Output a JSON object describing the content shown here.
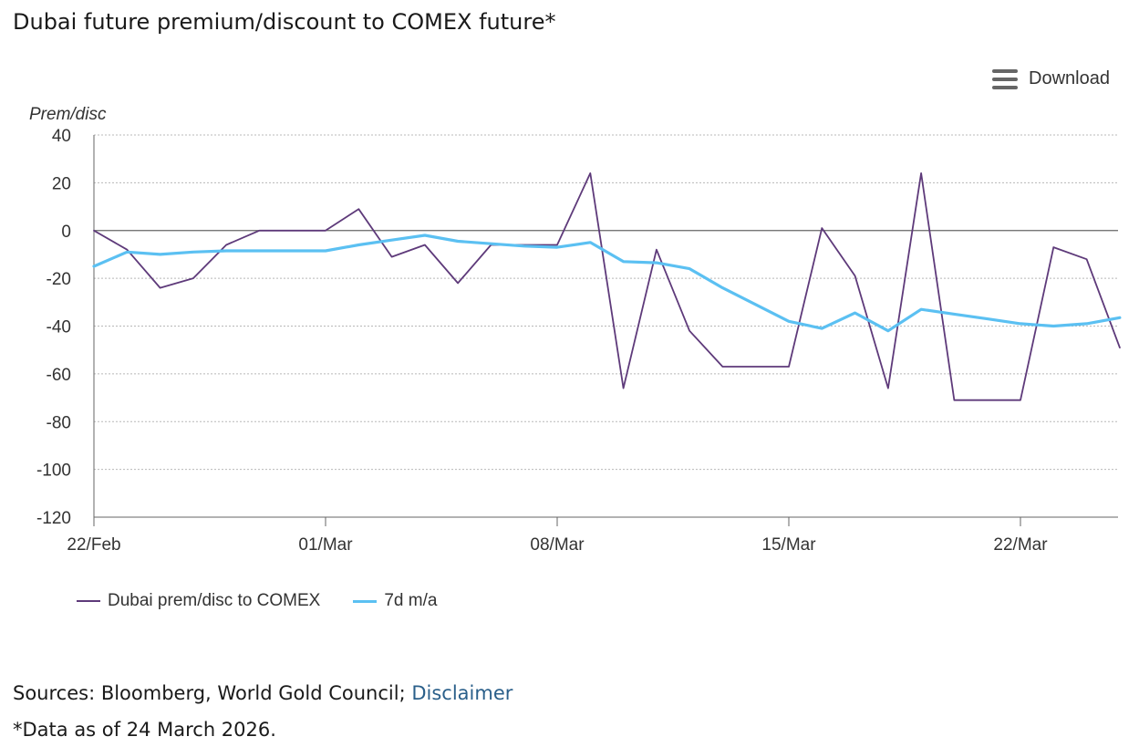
{
  "page": {
    "title": "Dubai future premium/discount to COMEX future*",
    "download_label": "Download",
    "sources_prefix": "Sources: Bloomberg, World Gold Council; ",
    "disclaimer_label": "Disclaimer",
    "as_of": "*Data as of 24 March 2026."
  },
  "chart_data": {
    "type": "line",
    "title": "Dubai future premium/discount to COMEX future*",
    "ylabel": "Prem/disc",
    "ylim": [
      -120,
      40
    ],
    "yticks": [
      40,
      20,
      0,
      -20,
      -40,
      -60,
      -80,
      -100,
      -120
    ],
    "xticks": [
      "22/Feb",
      "01/Mar",
      "08/Mar",
      "15/Mar",
      "22/Mar"
    ],
    "grid": true,
    "legend": "bottom-left",
    "x": [
      "22/Feb",
      "23/Feb",
      "24/Feb",
      "25/Feb",
      "26/Feb",
      "27/Feb",
      "28/Feb",
      "01/Mar",
      "02/Mar",
      "03/Mar",
      "04/Mar",
      "05/Mar",
      "06/Mar",
      "07/Mar",
      "08/Mar",
      "09/Mar",
      "10/Mar",
      "11/Mar",
      "12/Mar",
      "13/Mar",
      "14/Mar",
      "15/Mar",
      "16/Mar",
      "17/Mar",
      "18/Mar",
      "19/Mar",
      "20/Mar",
      "21/Mar",
      "22/Mar",
      "23/Mar",
      "24/Mar",
      "25/Mar"
    ],
    "series": [
      {
        "name": "Dubai prem/disc to COMEX",
        "color": "#5e3a7a",
        "values": [
          0,
          -8,
          -24,
          -20,
          -6,
          0,
          0,
          0,
          9,
          -11,
          -6,
          -22,
          -6,
          -6,
          -6,
          24,
          -66,
          -8,
          -42,
          -57,
          -57,
          -57,
          1,
          -19,
          -66,
          24,
          -71,
          -71,
          -71,
          -7,
          -12,
          -49
        ]
      },
      {
        "name": "7d m/a",
        "color": "#5bc0f2",
        "values": [
          -15,
          -9,
          -10,
          -9,
          -8.5,
          -8.5,
          -8.5,
          -8.5,
          -6,
          -4,
          -2,
          -4.5,
          -5.5,
          -6.5,
          -7,
          -5,
          -13,
          -13.5,
          -16,
          -24,
          -31,
          -38,
          -41,
          -34.5,
          -42,
          -33,
          -35,
          -37,
          -39,
          -40,
          -39,
          -36.5
        ]
      }
    ]
  }
}
